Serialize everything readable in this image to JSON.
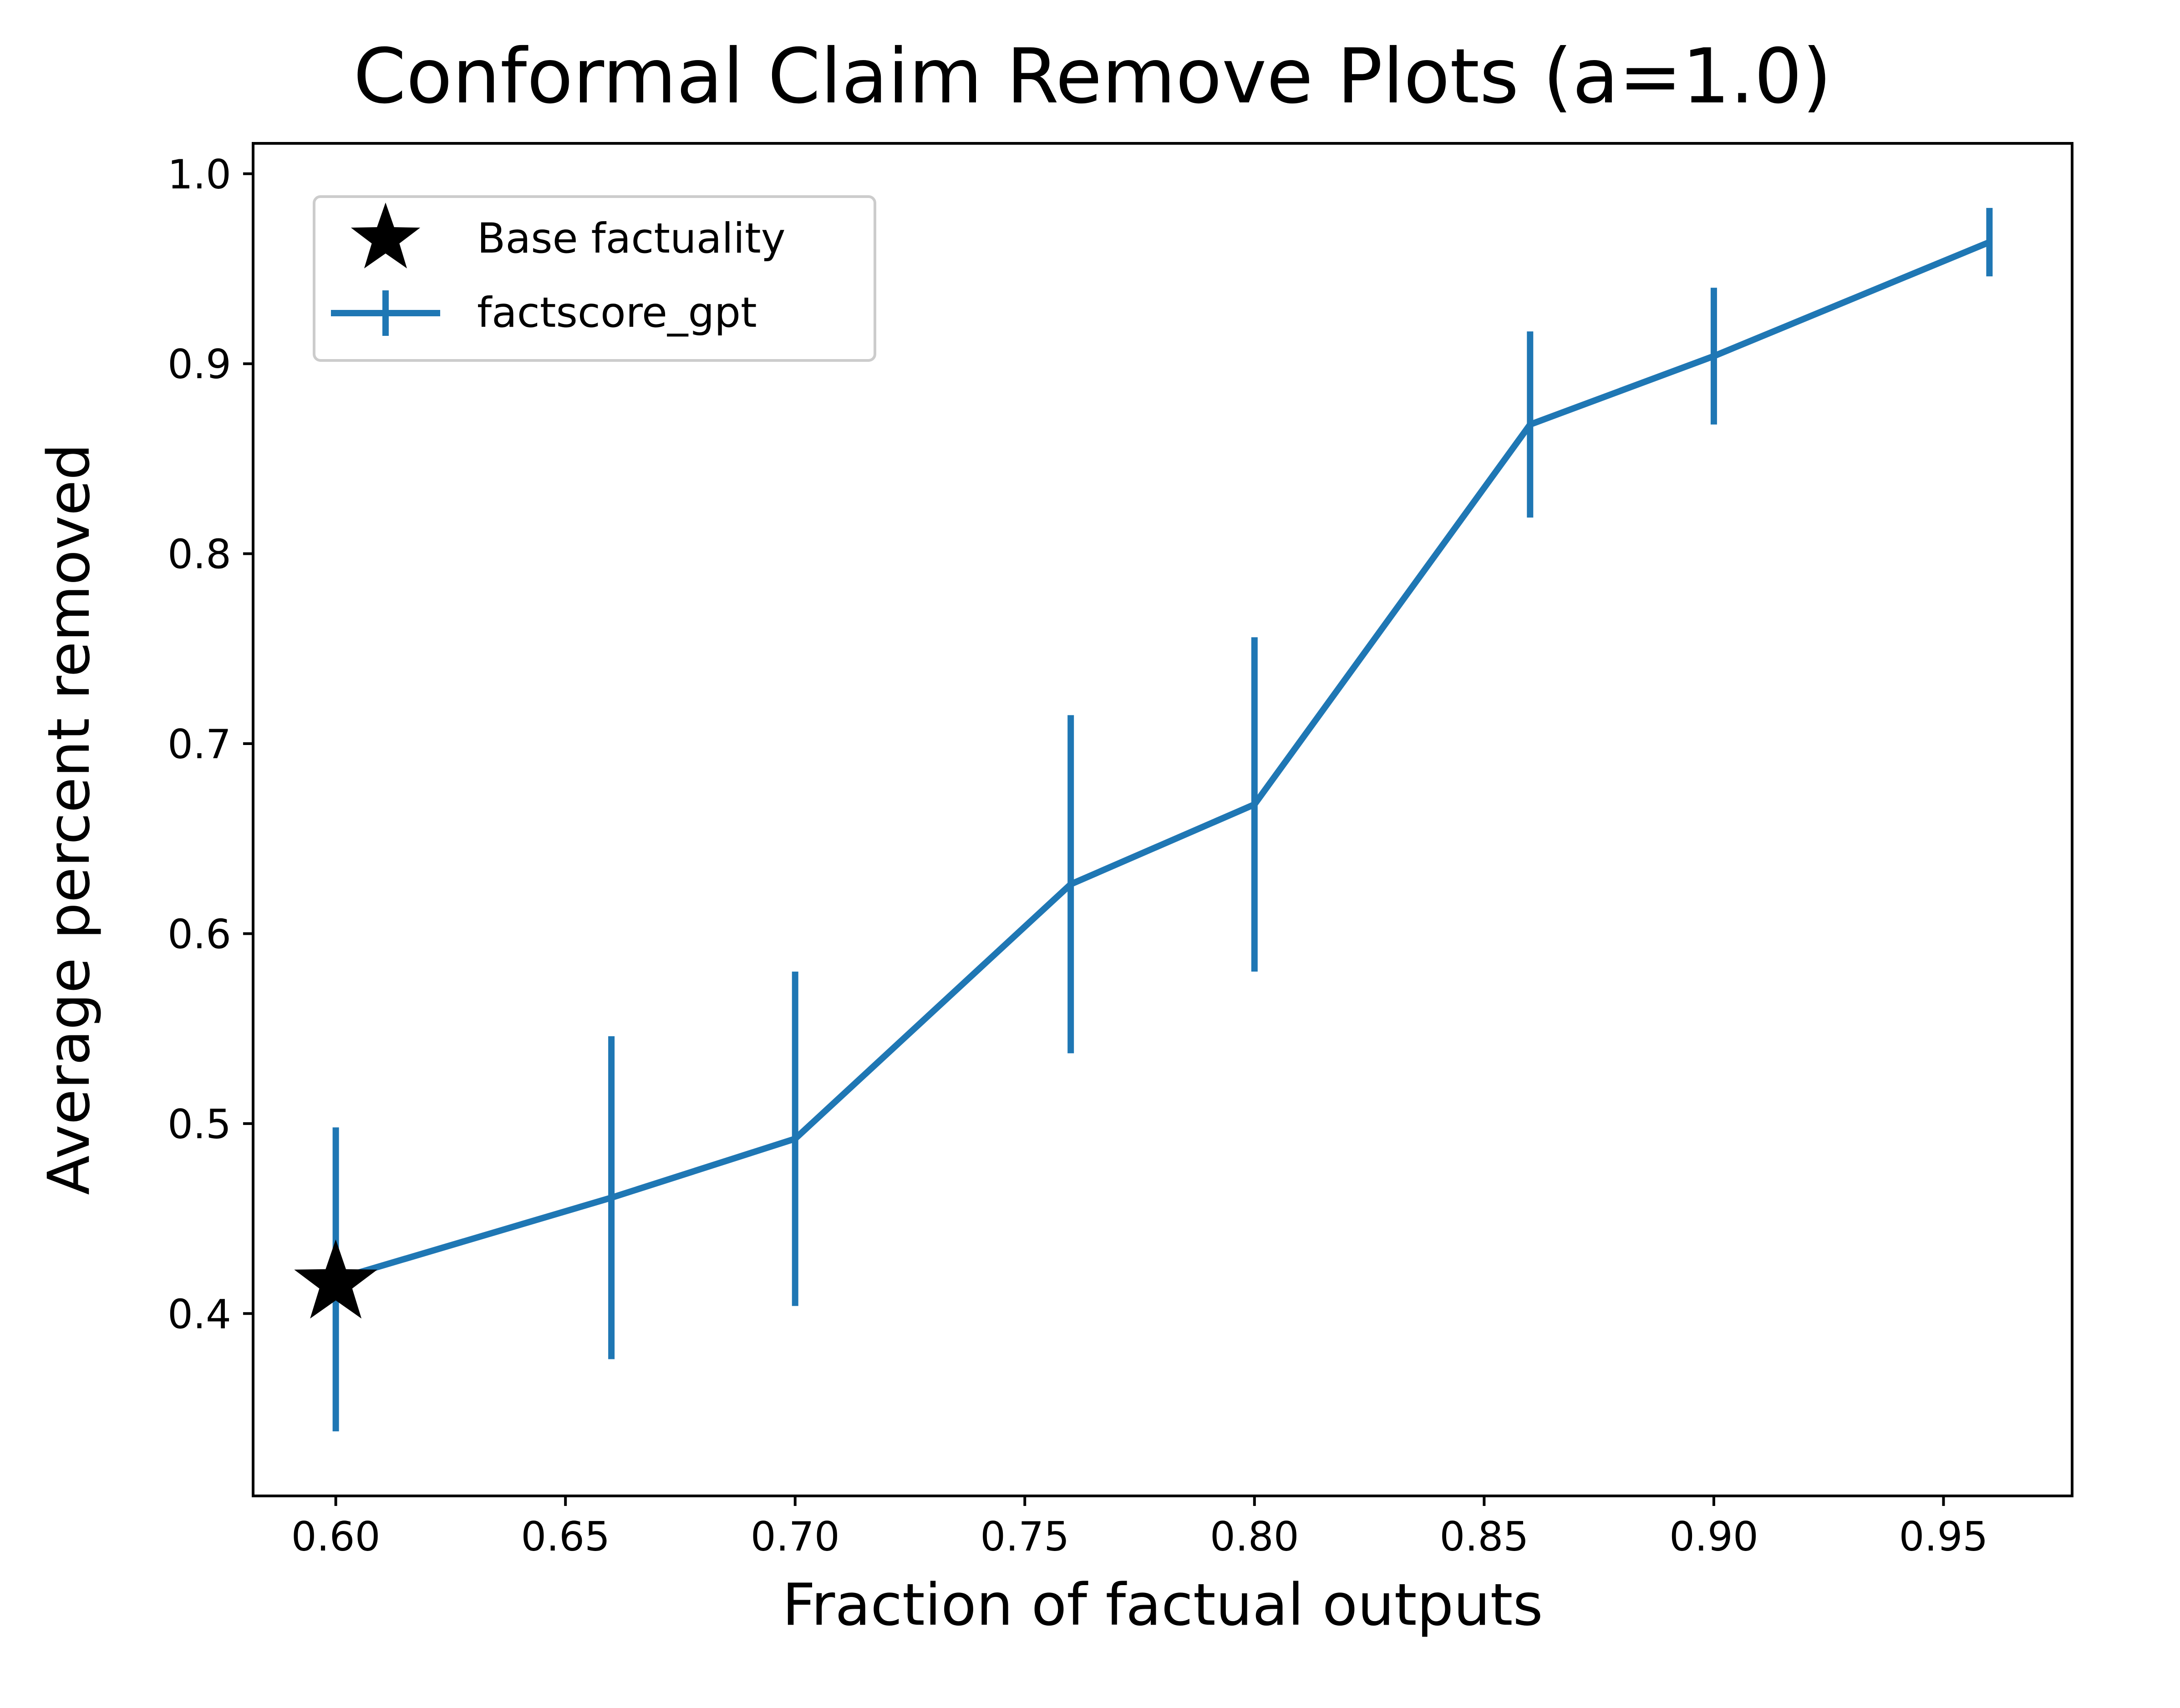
{
  "chart_data": {
    "type": "line",
    "title": "Conformal Claim Remove Plots (a=1.0)",
    "xlabel": "Fraction of factual outputs",
    "ylabel": "Average percent removed",
    "xlim": [
      0.582,
      0.978
    ],
    "ylim": [
      0.304,
      1.016
    ],
    "xticks": [
      "0.60",
      "0.65",
      "0.70",
      "0.75",
      "0.80",
      "0.85",
      "0.90",
      "0.95"
    ],
    "yticks": [
      "0.4",
      "0.5",
      "0.6",
      "0.7",
      "0.8",
      "0.9",
      "1.0"
    ],
    "grid": false,
    "legend_position": "top-left",
    "series": [
      {
        "name": "factscore_gpt",
        "color": "#1f77b4",
        "marker": "errorbar",
        "x": [
          0.6,
          0.66,
          0.7,
          0.76,
          0.8,
          0.86,
          0.9,
          0.96
        ],
        "y": [
          0.418,
          0.461,
          0.492,
          0.626,
          0.668,
          0.868,
          0.904,
          0.964
        ],
        "err": [
          0.08,
          0.085,
          0.088,
          0.089,
          0.088,
          0.049,
          0.036,
          0.018
        ]
      },
      {
        "name": "Base factuality",
        "color": "#000000",
        "marker": "star",
        "x": [
          0.6
        ],
        "y": [
          0.416
        ]
      }
    ]
  }
}
